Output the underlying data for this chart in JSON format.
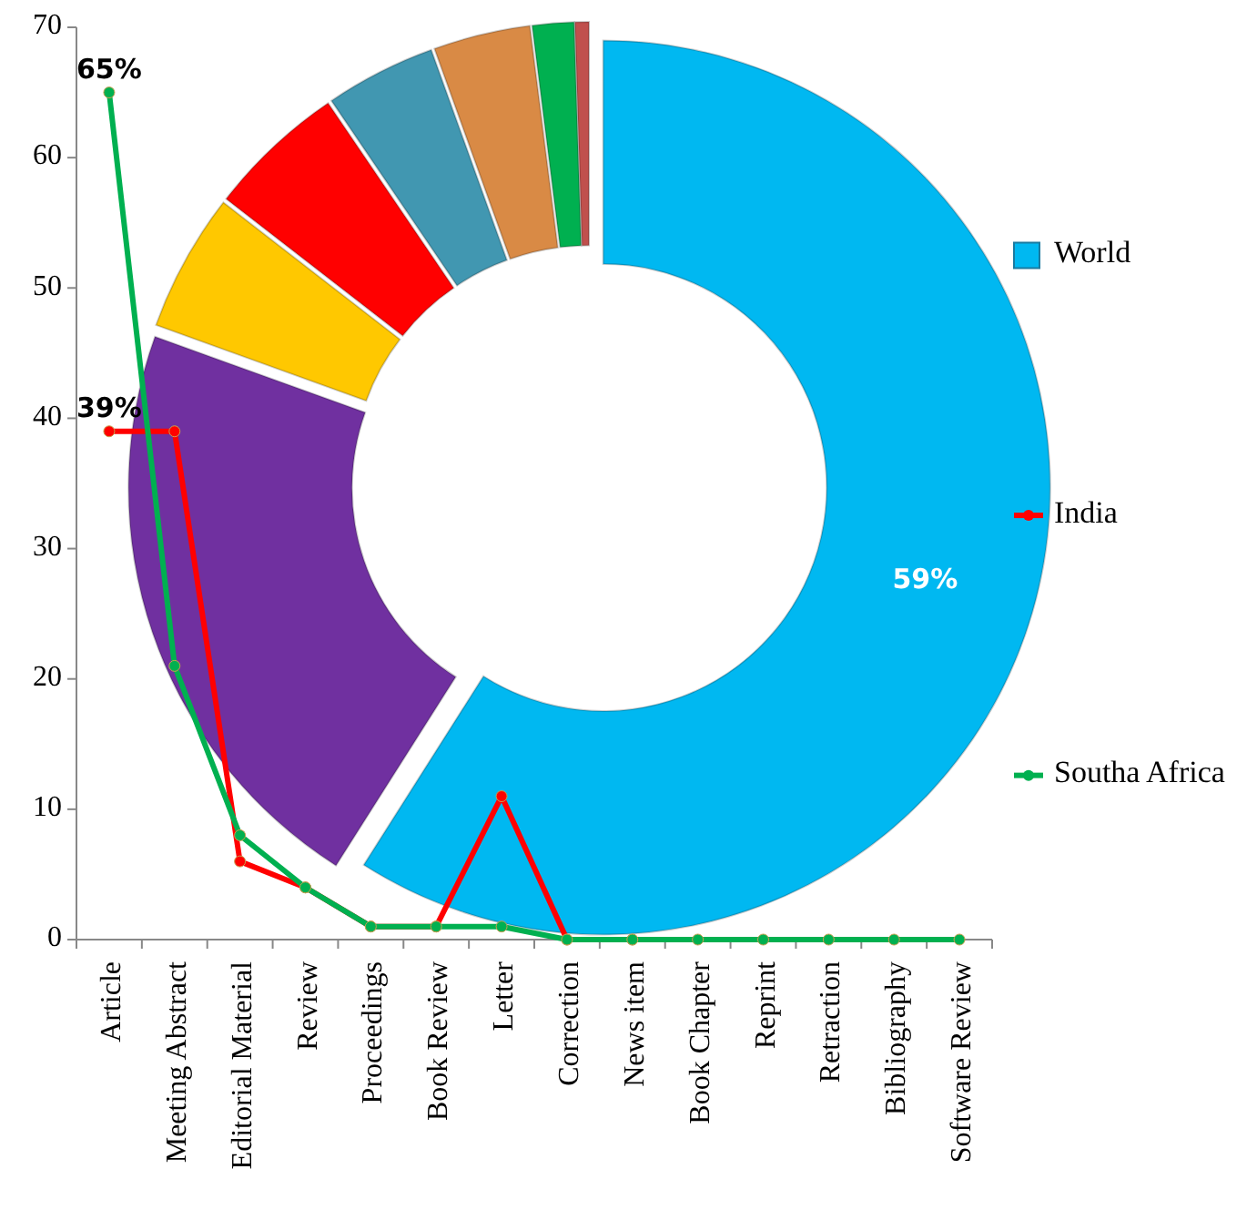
{
  "chart_data": [
    {
      "type": "donut",
      "categories": [
        null,
        null,
        null,
        null,
        null,
        null,
        null,
        null
      ],
      "legend": "right",
      "series": [
        {
          "name": "World",
          "colors": [
            "#00b8f1",
            "#7030a0",
            "#ffc800",
            "#ff0000",
            "#4197b1",
            "#d98a45",
            "#00b050",
            "#c0504d"
          ],
          "values": [
            59,
            21.5,
            5,
            5,
            4,
            3.5,
            1.5,
            0.5
          ],
          "value_labels": [
            "59%",
            null,
            null,
            null,
            null,
            null,
            null,
            null
          ]
        }
      ]
    },
    {
      "type": "line",
      "categories": [
        "Article",
        "Meeting Abstract",
        "Editorial Material",
        "Review",
        "Proceedings",
        "Book Review",
        "Letter",
        "Correction",
        "News item",
        "Book Chapter",
        "Reprint",
        "Retraction",
        "Bibliography",
        "Software Review"
      ],
      "ylim": [
        0,
        70
      ],
      "yticks": [
        0,
        10,
        20,
        30,
        40,
        50,
        60,
        70
      ],
      "legend": "right",
      "marker": "circle",
      "series": [
        {
          "name": "India",
          "color": "#ff0000",
          "values": [
            39,
            39,
            6,
            4,
            1,
            1,
            11,
            0,
            0,
            null,
            null,
            null,
            null,
            null
          ],
          "value_labels": [
            "39%",
            null,
            null,
            null,
            null,
            null,
            null,
            null,
            null,
            null,
            null,
            null,
            null,
            null
          ]
        },
        {
          "name": "Southa Africa",
          "color": "#00b050",
          "values": [
            65,
            21,
            8,
            4,
            1,
            1,
            1,
            0,
            0,
            0,
            0,
            0,
            0,
            0
          ],
          "value_labels": [
            "65%",
            null,
            null,
            null,
            null,
            null,
            null,
            null,
            null,
            null,
            null,
            null,
            null,
            null
          ]
        }
      ]
    }
  ]
}
